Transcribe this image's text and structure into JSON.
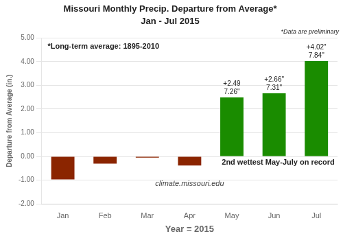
{
  "chart_data": {
    "type": "bar",
    "title": "Missouri Monthly Precip. Departure from Average*",
    "subtitle": "Jan - Jul 2015",
    "xlabel": "Year = 2015",
    "ylabel": "Departure from Average (in.)",
    "categories": [
      "Jan",
      "Feb",
      "Mar",
      "Apr",
      "May",
      "Jun",
      "Jul"
    ],
    "values": [
      -0.97,
      -0.3,
      -0.05,
      -0.38,
      2.49,
      2.66,
      4.02
    ],
    "colors": [
      "#8B2500",
      "#8B2500",
      "#8B2500",
      "#8B2500",
      "#1a8c00",
      "#1a8c00",
      "#1a8c00"
    ],
    "data_labels": true,
    "value_labels": [
      null,
      null,
      null,
      null,
      "+2.49",
      "+2.66\"",
      "+4.02\""
    ],
    "total_labels": [
      null,
      null,
      null,
      null,
      "7.26\"",
      "7.31\"",
      "7.84\""
    ],
    "ylim": [
      -2.0,
      5.0
    ],
    "yticks": [
      {
        "value": -2.0,
        "label": "-2.00"
      },
      {
        "value": -1.0,
        "label": "-1.00"
      },
      {
        "value": 0.0,
        "label": "0.00"
      },
      {
        "value": 1.0,
        "label": "1.00"
      },
      {
        "value": 2.0,
        "label": "2.00"
      },
      {
        "value": 3.0,
        "label": "3.00"
      },
      {
        "value": 4.0,
        "label": "4.00"
      },
      {
        "value": 5.0,
        "label": "5.00"
      }
    ],
    "grid": true,
    "annotations": {
      "preliminary": "*Data are preliminary",
      "longterm": "*Long-term average: 1895-2010",
      "wettest": "2nd wettest May-July on record",
      "website": "climate.missouri.edu"
    }
  }
}
